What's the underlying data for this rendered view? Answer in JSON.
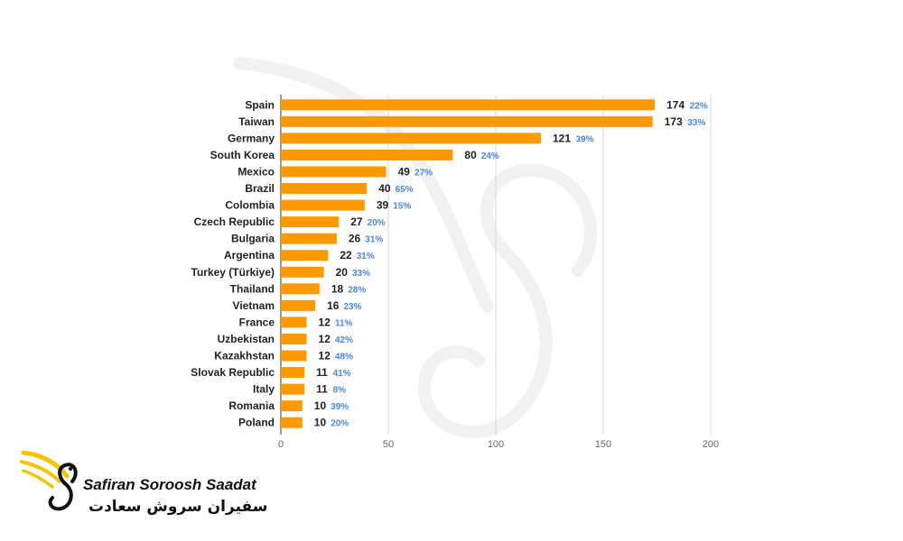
{
  "chart_data": {
    "type": "bar",
    "orientation": "horizontal",
    "categories": [
      "Spain",
      "Taiwan",
      "Germany",
      "South Korea",
      "Mexico",
      "Brazil",
      "Colombia",
      "Czech Republic",
      "Bulgaria",
      "Argentina",
      "Turkey (Türkiye)",
      "Thailand",
      "Vietnam",
      "France",
      "Uzbekistan",
      "Kazakhstan",
      "Slovak Republic",
      "Italy",
      "Romania",
      "Poland"
    ],
    "values": [
      174,
      173,
      121,
      80,
      49,
      40,
      39,
      27,
      26,
      22,
      20,
      18,
      16,
      12,
      12,
      12,
      11,
      11,
      10,
      10
    ],
    "percent_labels": [
      "22%",
      "33%",
      "39%",
      "24%",
      "27%",
      "65%",
      "15%",
      "20%",
      "31%",
      "31%",
      "33%",
      "28%",
      "23%",
      "11%",
      "42%",
      "48%",
      "41%",
      "8%",
      "39%",
      "20%"
    ],
    "xlim": [
      0,
      200
    ],
    "xticks": [
      "0",
      "50",
      "100",
      "150",
      "200"
    ],
    "grid": true,
    "bar_color": "#FF9900",
    "percent_color": "#4A86E8",
    "title": "",
    "xlabel": "",
    "ylabel": ""
  },
  "logo": {
    "text_en": "Safiran Soroosh Saadat",
    "text_fa": "سفیران سروش سعادت",
    "icon": "swan-logo-icon",
    "accent_color": "#F5C400"
  }
}
